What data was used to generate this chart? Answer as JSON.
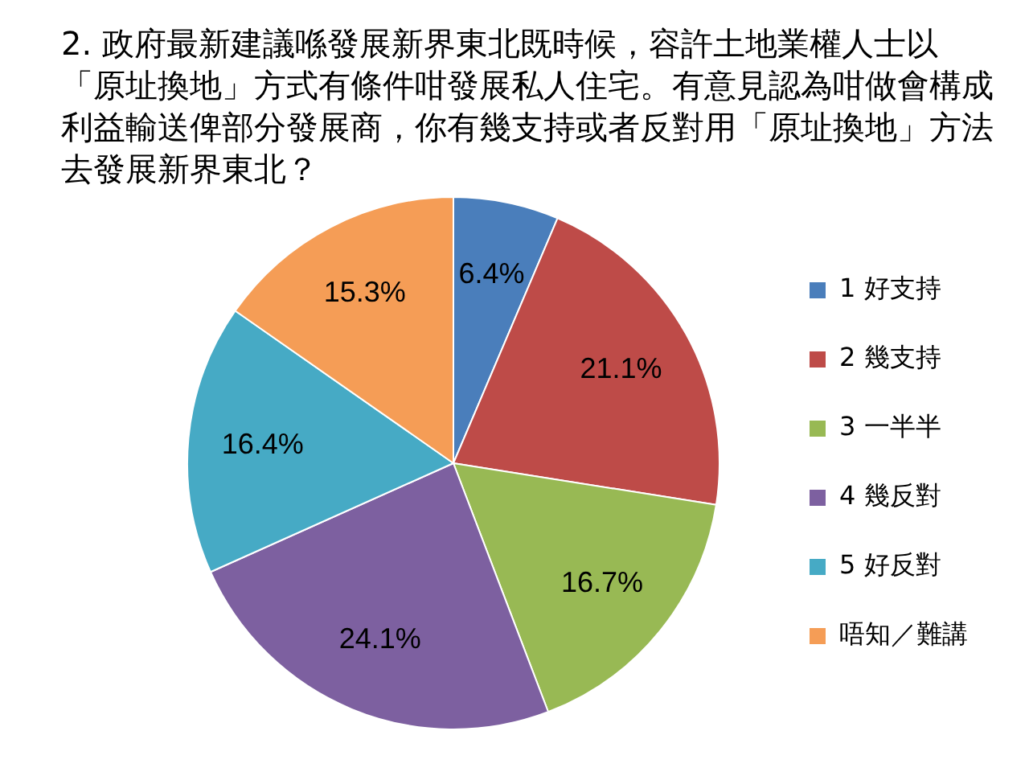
{
  "chart_data": {
    "type": "pie",
    "title": "2. 政府最新建議喺發展新界東北既時候，容許土地業權人士以「原址換地」方式有條件咁發展私人住宅。有意見認為咁做會構成利益輸送俾部分發展商，你有幾支持或者反對用「原址換地」方法去發展新界東北？",
    "categories": [
      "1 好支持",
      "2 幾支持",
      "3 一半半",
      "4 幾反對",
      "5 好反對",
      "唔知／難講"
    ],
    "values": [
      6.4,
      21.1,
      16.7,
      24.1,
      16.4,
      15.3
    ],
    "value_labels": [
      "6.4%",
      "21.1%",
      "16.7%",
      "24.1%",
      "16.4%",
      "15.3%"
    ],
    "colors": [
      "#4a7ebb",
      "#be4b48",
      "#98b954",
      "#7d60a0",
      "#46aac5",
      "#f59d56"
    ],
    "legend": "right"
  }
}
